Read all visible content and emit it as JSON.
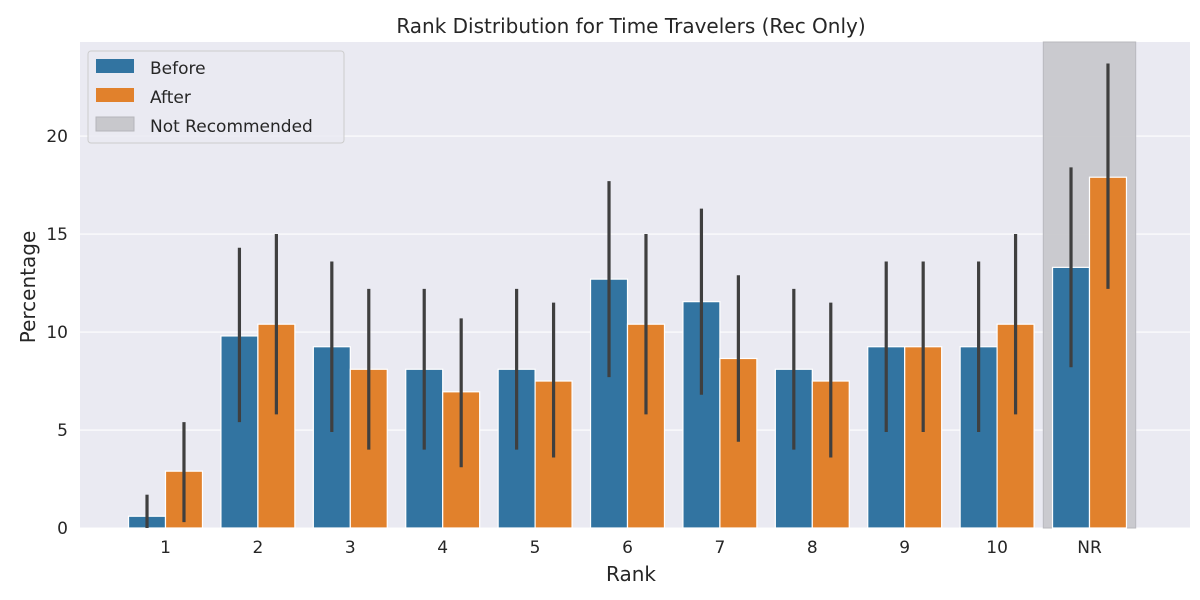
{
  "chart_data": {
    "type": "bar",
    "title": "Rank Distribution for Time Travelers (Rec Only)",
    "xlabel": "Rank",
    "ylabel": "Percentage",
    "categories": [
      "1",
      "2",
      "3",
      "4",
      "5",
      "6",
      "7",
      "8",
      "9",
      "10",
      "NR"
    ],
    "ylim": [
      0,
      24.8
    ],
    "yticks": [
      0,
      5,
      10,
      15,
      20
    ],
    "grid": true,
    "legend_position": "top-left",
    "series": [
      {
        "name": "Before",
        "color": "#3274a1",
        "values": [
          0.6,
          9.8,
          9.25,
          8.1,
          8.1,
          12.7,
          11.55,
          8.1,
          9.25,
          9.25,
          13.3
        ],
        "err_low": [
          0,
          5.4,
          4.9,
          4.0,
          4.0,
          7.7,
          6.8,
          4.0,
          4.9,
          4.9,
          8.2
        ],
        "err_high": [
          1.7,
          14.3,
          13.6,
          12.2,
          12.2,
          17.7,
          16.3,
          12.2,
          13.6,
          13.6,
          18.4
        ]
      },
      {
        "name": "After",
        "color": "#e1812c",
        "values": [
          2.9,
          10.4,
          8.1,
          6.95,
          7.5,
          10.4,
          8.65,
          7.5,
          9.25,
          10.4,
          17.9
        ],
        "err_low": [
          0.3,
          5.8,
          4.0,
          3.1,
          3.6,
          5.8,
          4.4,
          3.6,
          4.9,
          5.8,
          12.2
        ],
        "err_high": [
          5.4,
          15.0,
          12.2,
          10.7,
          11.5,
          15.0,
          12.9,
          11.5,
          13.6,
          15.0,
          23.7
        ]
      }
    ],
    "highlight": {
      "label": "Not Recommended",
      "category": "NR",
      "color": "#c8c8cc"
    },
    "error_bar_color": "#3f3f3f"
  }
}
